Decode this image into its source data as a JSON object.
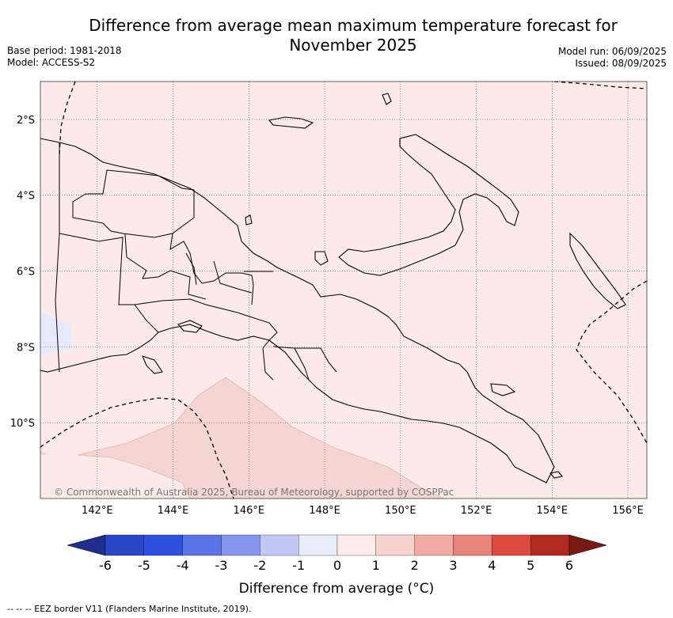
{
  "title_line1": "Difference from average mean maximum temperature forecast for",
  "title_line2": "November 2025",
  "base_period": "Base period: 1981-2018",
  "model": "Model: ACCESS-S2",
  "model_run": "Model run: 06/09/2025",
  "issued": "Issued: 08/09/2025",
  "copyright": "© Commonwealth of Australia 2025, Bureau of Meteorology, supported by COSPPac",
  "footer": "--  --  -- EEZ border V11 (Flanders Marine Institute, 2019).",
  "colorbar": {
    "title": "Difference from average (°C)",
    "ticks": [
      "-6",
      "-5",
      "-4",
      "-3",
      "-2",
      "-1",
      "0",
      "1",
      "2",
      "3",
      "4",
      "5",
      "6"
    ],
    "colors": [
      "#1f2d8f",
      "#2a46c8",
      "#2f4fe0",
      "#5a74e6",
      "#8796ec",
      "#c2c8f5",
      "#e8ecfb",
      "#fdecea",
      "#f6d3cf",
      "#f0aba6",
      "#e8847b",
      "#dc4a3d",
      "#b02a22",
      "#7a1a14"
    ]
  },
  "map": {
    "background_color": "#fbeae8",
    "lat_labels": [
      "2°S",
      "4°S",
      "6°S",
      "8°S",
      "10°S"
    ],
    "lon_labels": [
      "142°E",
      "144°E",
      "146°E",
      "148°E",
      "150°E",
      "152°E",
      "154°E",
      "156°E"
    ],
    "lon_range": [
      140.5,
      156.5
    ],
    "lat_range": [
      -1,
      -12
    ]
  }
}
